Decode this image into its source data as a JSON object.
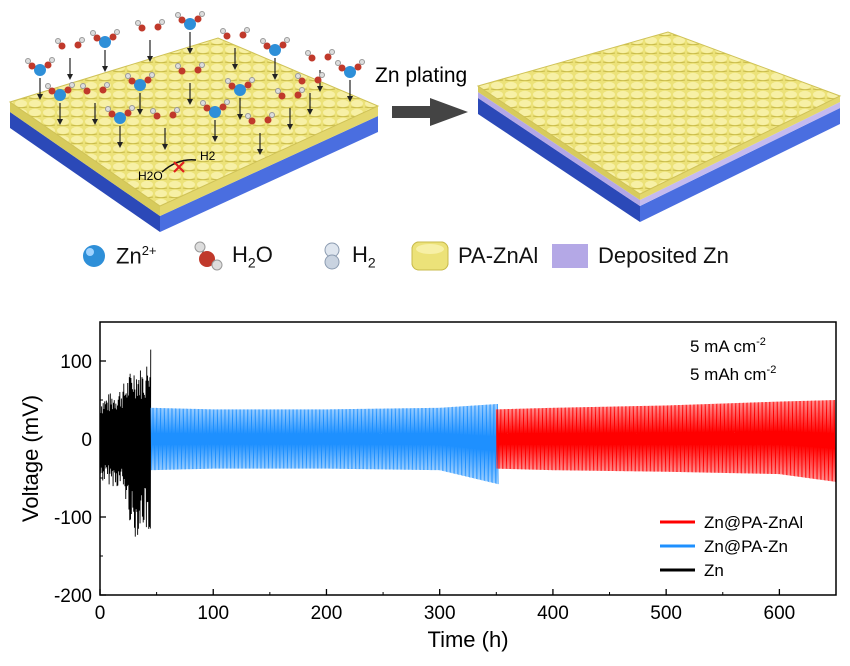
{
  "scheme": {
    "arrow_label": "Zn plating",
    "reaction_h2o": "H2O",
    "reaction_h2": "H2",
    "legend": [
      {
        "label": "Zn2+",
        "icon": "zn-ion-icon"
      },
      {
        "label": "H2O",
        "icon": "water-molecule-icon"
      },
      {
        "label": "H2",
        "icon": "hydrogen-molecule-icon"
      },
      {
        "label": "PA-ZnAl",
        "icon": "pa-znal-layer-icon"
      },
      {
        "label": "Deposited Zn",
        "icon": "deposited-zn-icon"
      }
    ],
    "colors": {
      "coating": "#e6dc7a",
      "substrate": "#3d5fd1",
      "deposit": "#b4a8e6",
      "zn_ion": "#2e8fd8"
    }
  },
  "chart_data": {
    "type": "line",
    "xlabel": "Time (h)",
    "ylabel": "Voltage (mV)",
    "xlim": [
      0,
      650
    ],
    "ylim": [
      -200,
      150
    ],
    "xticks": [
      0,
      100,
      200,
      300,
      400,
      500,
      600
    ],
    "yticks": [
      -200,
      -100,
      0,
      100
    ],
    "annotations": [
      "5 mA cm-2",
      "5 mAh cm-2"
    ],
    "legend_position": "bottom-right",
    "series": [
      {
        "name": "Zn@PA-ZnAl",
        "color": "#ff0000",
        "envelope": [
          [
            350,
            -38,
            38
          ],
          [
            400,
            -40,
            40
          ],
          [
            500,
            -42,
            43
          ],
          [
            600,
            -45,
            48
          ],
          [
            650,
            -55,
            50
          ]
        ]
      },
      {
        "name": "Zn@PA-Zn",
        "color": "#1e90ff",
        "envelope": [
          [
            45,
            -40,
            40
          ],
          [
            100,
            -38,
            38
          ],
          [
            200,
            -38,
            38
          ],
          [
            300,
            -40,
            40
          ],
          [
            352,
            -58,
            45
          ]
        ]
      },
      {
        "name": "Zn",
        "color": "#000000",
        "envelope": [
          [
            0,
            -55,
            55
          ],
          [
            10,
            -60,
            60
          ],
          [
            20,
            -65,
            70
          ],
          [
            30,
            -130,
            95
          ],
          [
            40,
            -110,
            90
          ],
          [
            45,
            -175,
            128
          ]
        ]
      }
    ]
  }
}
